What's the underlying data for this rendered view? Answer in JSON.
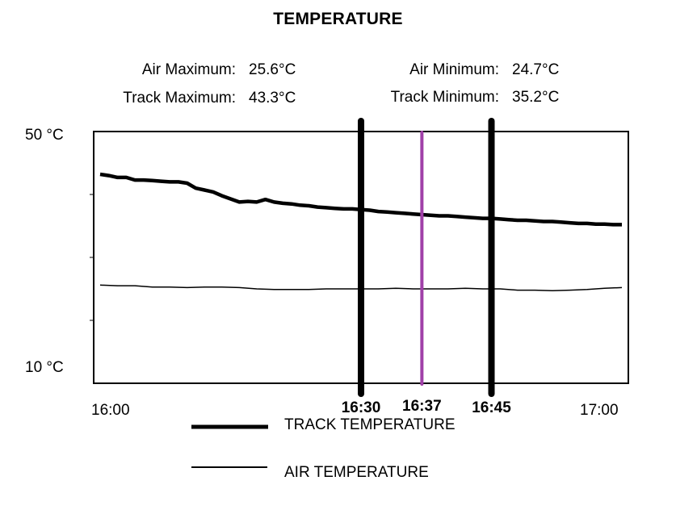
{
  "chart_data": {
    "type": "line",
    "title": "TEMPERATURE",
    "stats": {
      "air_max_label": "Air Maximum:",
      "air_max_value": "25.6°C",
      "track_max_label": "Track Maximum:",
      "track_max_value": "43.3°C",
      "air_min_label": "Air Minimum:",
      "air_min_value": "24.7°C",
      "track_min_label": "Track Minimum:",
      "track_min_value": "35.2°C"
    },
    "y_axis": {
      "min": 10,
      "max": 50,
      "top_label": "50 °C",
      "bottom_label": "10 °C"
    },
    "x_axis": {
      "start": "16:00",
      "end": "17:00",
      "start_label": "16:00",
      "end_label": "17:00"
    },
    "markers": [
      {
        "time": "16:30",
        "label": "16:30",
        "color": "#000000"
      },
      {
        "time": "16:37",
        "label": "16:37",
        "color": "#a040a8"
      },
      {
        "time": "16:45",
        "label": "16:45",
        "color": "#000000"
      }
    ],
    "series": [
      {
        "name": "TRACK TEMPERATURE",
        "color": "#000000",
        "points": [
          [
            "16:00",
            43.2
          ],
          [
            "16:01",
            43.0
          ],
          [
            "16:02",
            42.7
          ],
          [
            "16:03",
            42.7
          ],
          [
            "16:04",
            42.3
          ],
          [
            "16:05",
            42.3
          ],
          [
            "16:06",
            42.2
          ],
          [
            "16:07",
            42.1
          ],
          [
            "16:08",
            42.0
          ],
          [
            "16:09",
            42.0
          ],
          [
            "16:10",
            41.8
          ],
          [
            "16:11",
            41.0
          ],
          [
            "16:12",
            40.7
          ],
          [
            "16:13",
            40.4
          ],
          [
            "16:14",
            39.8
          ],
          [
            "16:15",
            39.3
          ],
          [
            "16:16",
            38.8
          ],
          [
            "16:17",
            38.9
          ],
          [
            "16:18",
            38.8
          ],
          [
            "16:19",
            39.2
          ],
          [
            "16:20",
            38.8
          ],
          [
            "16:21",
            38.6
          ],
          [
            "16:22",
            38.5
          ],
          [
            "16:23",
            38.3
          ],
          [
            "16:24",
            38.2
          ],
          [
            "16:25",
            38.0
          ],
          [
            "16:26",
            37.9
          ],
          [
            "16:27",
            37.8
          ],
          [
            "16:28",
            37.7
          ],
          [
            "16:29",
            37.7
          ],
          [
            "16:30",
            37.6
          ],
          [
            "16:31",
            37.5
          ],
          [
            "16:32",
            37.3
          ],
          [
            "16:33",
            37.2
          ],
          [
            "16:34",
            37.1
          ],
          [
            "16:35",
            37.0
          ],
          [
            "16:36",
            36.9
          ],
          [
            "16:37",
            36.8
          ],
          [
            "16:38",
            36.7
          ],
          [
            "16:39",
            36.6
          ],
          [
            "16:40",
            36.6
          ],
          [
            "16:41",
            36.5
          ],
          [
            "16:42",
            36.4
          ],
          [
            "16:43",
            36.3
          ],
          [
            "16:44",
            36.2
          ],
          [
            "16:45",
            36.2
          ],
          [
            "16:46",
            36.1
          ],
          [
            "16:47",
            36.0
          ],
          [
            "16:48",
            35.9
          ],
          [
            "16:49",
            35.9
          ],
          [
            "16:50",
            35.8
          ],
          [
            "16:51",
            35.7
          ],
          [
            "16:52",
            35.7
          ],
          [
            "16:53",
            35.6
          ],
          [
            "16:54",
            35.5
          ],
          [
            "16:55",
            35.4
          ],
          [
            "16:56",
            35.4
          ],
          [
            "16:57",
            35.3
          ],
          [
            "16:58",
            35.3
          ],
          [
            "16:59",
            35.2
          ],
          [
            "17:00",
            35.2
          ]
        ]
      },
      {
        "name": "AIR TEMPERATURE",
        "color": "#000000",
        "points": [
          [
            "16:00",
            25.6
          ],
          [
            "16:02",
            25.5
          ],
          [
            "16:04",
            25.5
          ],
          [
            "16:06",
            25.3
          ],
          [
            "16:08",
            25.3
          ],
          [
            "16:10",
            25.2
          ],
          [
            "16:12",
            25.3
          ],
          [
            "16:14",
            25.3
          ],
          [
            "16:16",
            25.2
          ],
          [
            "16:18",
            25.0
          ],
          [
            "16:20",
            24.9
          ],
          [
            "16:22",
            24.9
          ],
          [
            "16:24",
            24.9
          ],
          [
            "16:26",
            25.0
          ],
          [
            "16:28",
            25.0
          ],
          [
            "16:30",
            25.0
          ],
          [
            "16:32",
            25.0
          ],
          [
            "16:34",
            25.1
          ],
          [
            "16:36",
            25.0
          ],
          [
            "16:38",
            25.0
          ],
          [
            "16:40",
            25.0
          ],
          [
            "16:42",
            25.1
          ],
          [
            "16:44",
            25.0
          ],
          [
            "16:46",
            25.0
          ],
          [
            "16:48",
            24.8
          ],
          [
            "16:50",
            24.8
          ],
          [
            "16:52",
            24.7
          ],
          [
            "16:54",
            24.8
          ],
          [
            "16:56",
            24.9
          ],
          [
            "16:58",
            25.1
          ],
          [
            "17:00",
            25.2
          ]
        ]
      }
    ]
  }
}
